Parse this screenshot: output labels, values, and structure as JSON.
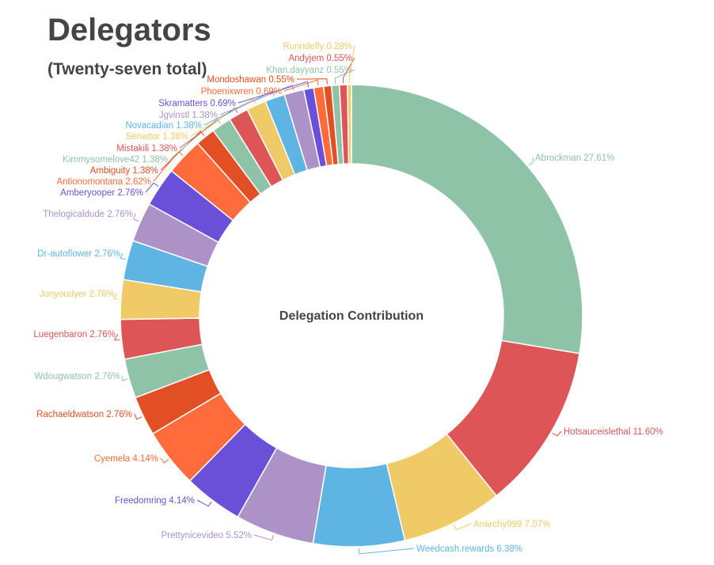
{
  "chart_data": {
    "type": "pie",
    "variant": "donut",
    "title": "Delegators",
    "subtitle": "(Twenty-seven total)",
    "center_label": "Delegation Contribution",
    "unit": "%",
    "palette": [
      "#8FC3A8",
      "#DD5557",
      "#EFCA67",
      "#5EB5E3",
      "#AC92C7",
      "#6A50D9",
      "#FF6B3B",
      "#E24F24"
    ],
    "slices": [
      {
        "name": "Abrockman",
        "value": 27.61
      },
      {
        "name": "Hotsauceislethal",
        "value": 11.6
      },
      {
        "name": "Anarchy999",
        "value": 7.07
      },
      {
        "name": "Weedcash.rewards",
        "value": 6.38
      },
      {
        "name": "Prettynicevideo",
        "value": 5.52
      },
      {
        "name": "Freedomring",
        "value": 4.14
      },
      {
        "name": "Cyemela",
        "value": 4.14
      },
      {
        "name": "Rachaeldwatson",
        "value": 2.76
      },
      {
        "name": "Wdougwatson",
        "value": 2.76
      },
      {
        "name": "Luegenbaron",
        "value": 2.76
      },
      {
        "name": "Jonyoudyer",
        "value": 2.76
      },
      {
        "name": "Dr-autoflower",
        "value": 2.76
      },
      {
        "name": "Thelogicaldude",
        "value": 2.76
      },
      {
        "name": "Amberyooper",
        "value": 2.76
      },
      {
        "name": "Antionomontana",
        "value": 2.62
      },
      {
        "name": "Ambiguity",
        "value": 1.38
      },
      {
        "name": "Kimmysomelove42",
        "value": 1.38
      },
      {
        "name": "Mistakili",
        "value": 1.38
      },
      {
        "name": "Senattor",
        "value": 1.38
      },
      {
        "name": "Novacadian",
        "value": 1.38
      },
      {
        "name": "Jgvinstl",
        "value": 1.38
      },
      {
        "name": "Skramatters",
        "value": 0.69
      },
      {
        "name": "Phoenixwren",
        "value": 0.69
      },
      {
        "name": "Mondoshawan",
        "value": 0.55
      },
      {
        "name": "Khan.dayyanz",
        "value": 0.55
      },
      {
        "name": "Andyjem",
        "value": 0.55
      },
      {
        "name": "Runridefly",
        "value": 0.28
      }
    ]
  }
}
